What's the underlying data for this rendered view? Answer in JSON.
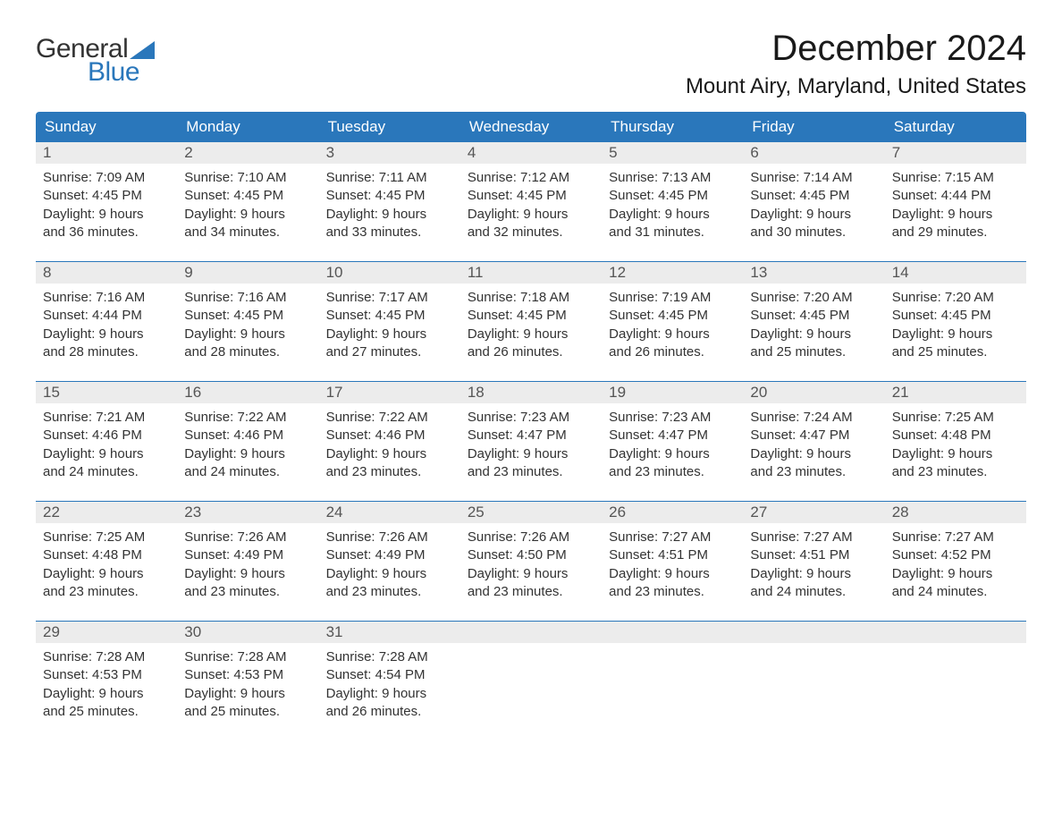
{
  "brand": {
    "word1": "General",
    "word2": "Blue",
    "accent_color": "#2a77bb",
    "text_color": "#333333"
  },
  "header": {
    "month_title": "December 2024",
    "location": "Mount Airy, Maryland, United States"
  },
  "calendar": {
    "day_headers": [
      "Sunday",
      "Monday",
      "Tuesday",
      "Wednesday",
      "Thursday",
      "Friday",
      "Saturday"
    ],
    "header_bg": "#2a77bb",
    "header_fg": "#ffffff",
    "daynum_bg": "#ececec",
    "rule_color": "#2a77bb",
    "body_bg": "#ffffff",
    "text_color": "#333333",
    "font_size_header_pt": 13,
    "font_size_body_pt": 11,
    "weeks": [
      [
        {
          "num": "1",
          "sunrise": "Sunrise: 7:09 AM",
          "sunset": "Sunset: 4:45 PM",
          "daylight1": "Daylight: 9 hours",
          "daylight2": "and 36 minutes."
        },
        {
          "num": "2",
          "sunrise": "Sunrise: 7:10 AM",
          "sunset": "Sunset: 4:45 PM",
          "daylight1": "Daylight: 9 hours",
          "daylight2": "and 34 minutes."
        },
        {
          "num": "3",
          "sunrise": "Sunrise: 7:11 AM",
          "sunset": "Sunset: 4:45 PM",
          "daylight1": "Daylight: 9 hours",
          "daylight2": "and 33 minutes."
        },
        {
          "num": "4",
          "sunrise": "Sunrise: 7:12 AM",
          "sunset": "Sunset: 4:45 PM",
          "daylight1": "Daylight: 9 hours",
          "daylight2": "and 32 minutes."
        },
        {
          "num": "5",
          "sunrise": "Sunrise: 7:13 AM",
          "sunset": "Sunset: 4:45 PM",
          "daylight1": "Daylight: 9 hours",
          "daylight2": "and 31 minutes."
        },
        {
          "num": "6",
          "sunrise": "Sunrise: 7:14 AM",
          "sunset": "Sunset: 4:45 PM",
          "daylight1": "Daylight: 9 hours",
          "daylight2": "and 30 minutes."
        },
        {
          "num": "7",
          "sunrise": "Sunrise: 7:15 AM",
          "sunset": "Sunset: 4:44 PM",
          "daylight1": "Daylight: 9 hours",
          "daylight2": "and 29 minutes."
        }
      ],
      [
        {
          "num": "8",
          "sunrise": "Sunrise: 7:16 AM",
          "sunset": "Sunset: 4:44 PM",
          "daylight1": "Daylight: 9 hours",
          "daylight2": "and 28 minutes."
        },
        {
          "num": "9",
          "sunrise": "Sunrise: 7:16 AM",
          "sunset": "Sunset: 4:45 PM",
          "daylight1": "Daylight: 9 hours",
          "daylight2": "and 28 minutes."
        },
        {
          "num": "10",
          "sunrise": "Sunrise: 7:17 AM",
          "sunset": "Sunset: 4:45 PM",
          "daylight1": "Daylight: 9 hours",
          "daylight2": "and 27 minutes."
        },
        {
          "num": "11",
          "sunrise": "Sunrise: 7:18 AM",
          "sunset": "Sunset: 4:45 PM",
          "daylight1": "Daylight: 9 hours",
          "daylight2": "and 26 minutes."
        },
        {
          "num": "12",
          "sunrise": "Sunrise: 7:19 AM",
          "sunset": "Sunset: 4:45 PM",
          "daylight1": "Daylight: 9 hours",
          "daylight2": "and 26 minutes."
        },
        {
          "num": "13",
          "sunrise": "Sunrise: 7:20 AM",
          "sunset": "Sunset: 4:45 PM",
          "daylight1": "Daylight: 9 hours",
          "daylight2": "and 25 minutes."
        },
        {
          "num": "14",
          "sunrise": "Sunrise: 7:20 AM",
          "sunset": "Sunset: 4:45 PM",
          "daylight1": "Daylight: 9 hours",
          "daylight2": "and 25 minutes."
        }
      ],
      [
        {
          "num": "15",
          "sunrise": "Sunrise: 7:21 AM",
          "sunset": "Sunset: 4:46 PM",
          "daylight1": "Daylight: 9 hours",
          "daylight2": "and 24 minutes."
        },
        {
          "num": "16",
          "sunrise": "Sunrise: 7:22 AM",
          "sunset": "Sunset: 4:46 PM",
          "daylight1": "Daylight: 9 hours",
          "daylight2": "and 24 minutes."
        },
        {
          "num": "17",
          "sunrise": "Sunrise: 7:22 AM",
          "sunset": "Sunset: 4:46 PM",
          "daylight1": "Daylight: 9 hours",
          "daylight2": "and 23 minutes."
        },
        {
          "num": "18",
          "sunrise": "Sunrise: 7:23 AM",
          "sunset": "Sunset: 4:47 PM",
          "daylight1": "Daylight: 9 hours",
          "daylight2": "and 23 minutes."
        },
        {
          "num": "19",
          "sunrise": "Sunrise: 7:23 AM",
          "sunset": "Sunset: 4:47 PM",
          "daylight1": "Daylight: 9 hours",
          "daylight2": "and 23 minutes."
        },
        {
          "num": "20",
          "sunrise": "Sunrise: 7:24 AM",
          "sunset": "Sunset: 4:47 PM",
          "daylight1": "Daylight: 9 hours",
          "daylight2": "and 23 minutes."
        },
        {
          "num": "21",
          "sunrise": "Sunrise: 7:25 AM",
          "sunset": "Sunset: 4:48 PM",
          "daylight1": "Daylight: 9 hours",
          "daylight2": "and 23 minutes."
        }
      ],
      [
        {
          "num": "22",
          "sunrise": "Sunrise: 7:25 AM",
          "sunset": "Sunset: 4:48 PM",
          "daylight1": "Daylight: 9 hours",
          "daylight2": "and 23 minutes."
        },
        {
          "num": "23",
          "sunrise": "Sunrise: 7:26 AM",
          "sunset": "Sunset: 4:49 PM",
          "daylight1": "Daylight: 9 hours",
          "daylight2": "and 23 minutes."
        },
        {
          "num": "24",
          "sunrise": "Sunrise: 7:26 AM",
          "sunset": "Sunset: 4:49 PM",
          "daylight1": "Daylight: 9 hours",
          "daylight2": "and 23 minutes."
        },
        {
          "num": "25",
          "sunrise": "Sunrise: 7:26 AM",
          "sunset": "Sunset: 4:50 PM",
          "daylight1": "Daylight: 9 hours",
          "daylight2": "and 23 minutes."
        },
        {
          "num": "26",
          "sunrise": "Sunrise: 7:27 AM",
          "sunset": "Sunset: 4:51 PM",
          "daylight1": "Daylight: 9 hours",
          "daylight2": "and 23 minutes."
        },
        {
          "num": "27",
          "sunrise": "Sunrise: 7:27 AM",
          "sunset": "Sunset: 4:51 PM",
          "daylight1": "Daylight: 9 hours",
          "daylight2": "and 24 minutes."
        },
        {
          "num": "28",
          "sunrise": "Sunrise: 7:27 AM",
          "sunset": "Sunset: 4:52 PM",
          "daylight1": "Daylight: 9 hours",
          "daylight2": "and 24 minutes."
        }
      ],
      [
        {
          "num": "29",
          "sunrise": "Sunrise: 7:28 AM",
          "sunset": "Sunset: 4:53 PM",
          "daylight1": "Daylight: 9 hours",
          "daylight2": "and 25 minutes."
        },
        {
          "num": "30",
          "sunrise": "Sunrise: 7:28 AM",
          "sunset": "Sunset: 4:53 PM",
          "daylight1": "Daylight: 9 hours",
          "daylight2": "and 25 minutes."
        },
        {
          "num": "31",
          "sunrise": "Sunrise: 7:28 AM",
          "sunset": "Sunset: 4:54 PM",
          "daylight1": "Daylight: 9 hours",
          "daylight2": "and 26 minutes."
        },
        null,
        null,
        null,
        null
      ]
    ]
  }
}
